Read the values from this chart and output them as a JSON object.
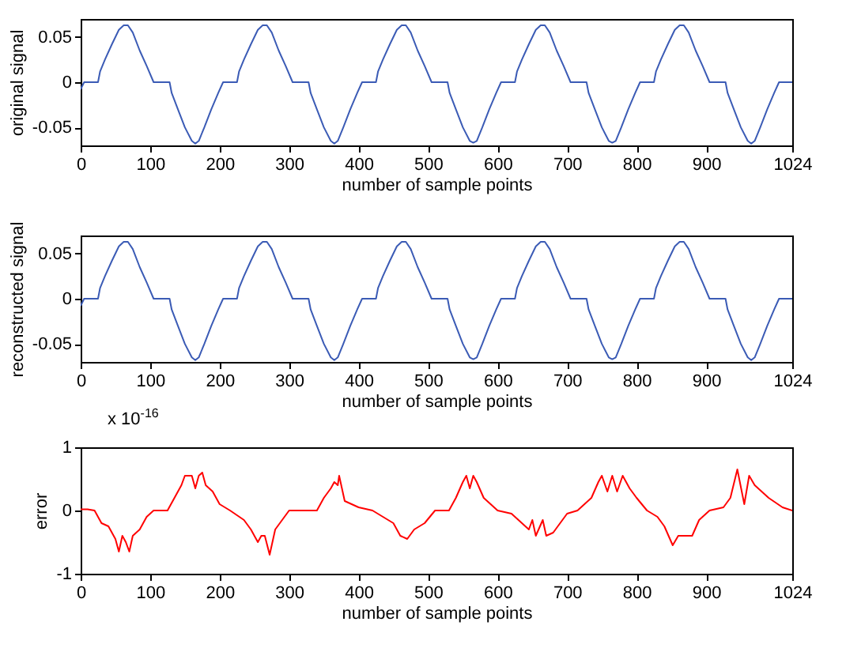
{
  "chart_data": [
    {
      "type": "line",
      "ylabel": "original signal",
      "xlabel": "number of sample points",
      "x": [
        0,
        5,
        25,
        28,
        35,
        45,
        55,
        62,
        68,
        75,
        85,
        95,
        105,
        128,
        131,
        140,
        150,
        160,
        165,
        170,
        178,
        188,
        198,
        205,
        225,
        228,
        235,
        245,
        255,
        262,
        268,
        275,
        285,
        295,
        305,
        328,
        331,
        340,
        350,
        360,
        365,
        370,
        378,
        388,
        398,
        405,
        425,
        428,
        435,
        445,
        455,
        462,
        468,
        475,
        485,
        495,
        505,
        528,
        531,
        540,
        550,
        560,
        565,
        570,
        578,
        588,
        598,
        605,
        625,
        628,
        635,
        645,
        655,
        662,
        668,
        675,
        685,
        695,
        705,
        728,
        731,
        740,
        750,
        760,
        765,
        770,
        778,
        788,
        798,
        805,
        825,
        828,
        835,
        845,
        855,
        862,
        868,
        875,
        885,
        895,
        905,
        928,
        931,
        940,
        950,
        960,
        965,
        970,
        978,
        988,
        998,
        1005,
        1024
      ],
      "series": [
        {
          "color": "#3b5bb5",
          "values": [
            -0.008,
            0,
            0,
            0.012,
            0.025,
            0.042,
            0.058,
            0.063,
            0.063,
            0.055,
            0.035,
            0.018,
            0,
            0,
            -0.012,
            -0.03,
            -0.05,
            -0.065,
            -0.068,
            -0.065,
            -0.05,
            -0.03,
            -0.012,
            0,
            0,
            0.012,
            0.025,
            0.042,
            0.058,
            0.063,
            0.063,
            0.055,
            0.035,
            0.018,
            0,
            0,
            -0.012,
            -0.03,
            -0.05,
            -0.065,
            -0.068,
            -0.065,
            -0.05,
            -0.03,
            -0.012,
            0,
            0,
            0.012,
            0.025,
            0.042,
            0.058,
            0.063,
            0.063,
            0.055,
            0.035,
            0.018,
            0,
            0,
            -0.012,
            -0.03,
            -0.05,
            -0.065,
            -0.067,
            -0.065,
            -0.05,
            -0.03,
            -0.012,
            0,
            0,
            0.012,
            0.025,
            0.042,
            0.058,
            0.063,
            0.063,
            0.055,
            0.035,
            0.018,
            0,
            0,
            -0.012,
            -0.03,
            -0.05,
            -0.065,
            -0.067,
            -0.065,
            -0.05,
            -0.03,
            -0.012,
            0,
            0,
            0.012,
            0.025,
            0.042,
            0.058,
            0.063,
            0.063,
            0.055,
            0.035,
            0.018,
            0,
            0,
            -0.012,
            -0.03,
            -0.05,
            -0.065,
            -0.068,
            -0.065,
            -0.05,
            -0.03,
            -0.012,
            0,
            0
          ]
        }
      ],
      "xlim": [
        0,
        1024
      ],
      "xticks": [
        0,
        100,
        200,
        300,
        400,
        500,
        600,
        700,
        800,
        900,
        1024
      ],
      "ylim": [
        -0.07,
        0.07
      ],
      "yticks": [
        -0.05,
        0,
        0.05
      ]
    },
    {
      "type": "line",
      "ylabel": "reconstructed signal",
      "xlabel": "number of sample points",
      "x": [
        0,
        5,
        25,
        28,
        35,
        45,
        55,
        62,
        68,
        75,
        85,
        95,
        105,
        128,
        131,
        140,
        150,
        160,
        165,
        170,
        178,
        188,
        198,
        205,
        225,
        228,
        235,
        245,
        255,
        262,
        268,
        275,
        285,
        295,
        305,
        328,
        331,
        340,
        350,
        360,
        365,
        370,
        378,
        388,
        398,
        405,
        425,
        428,
        435,
        445,
        455,
        462,
        468,
        475,
        485,
        495,
        505,
        528,
        531,
        540,
        550,
        560,
        565,
        570,
        578,
        588,
        598,
        605,
        625,
        628,
        635,
        645,
        655,
        662,
        668,
        675,
        685,
        695,
        705,
        728,
        731,
        740,
        750,
        760,
        765,
        770,
        778,
        788,
        798,
        805,
        825,
        828,
        835,
        845,
        855,
        862,
        868,
        875,
        885,
        895,
        905,
        928,
        931,
        940,
        950,
        960,
        965,
        970,
        978,
        988,
        998,
        1005,
        1024
      ],
      "series": [
        {
          "color": "#3b5bb5",
          "values": [
            -0.008,
            0,
            0,
            0.012,
            0.025,
            0.042,
            0.058,
            0.063,
            0.063,
            0.055,
            0.035,
            0.018,
            0,
            0,
            -0.012,
            -0.03,
            -0.05,
            -0.065,
            -0.068,
            -0.065,
            -0.05,
            -0.03,
            -0.012,
            0,
            0,
            0.012,
            0.025,
            0.042,
            0.058,
            0.063,
            0.063,
            0.055,
            0.035,
            0.018,
            0,
            0,
            -0.012,
            -0.03,
            -0.05,
            -0.065,
            -0.068,
            -0.065,
            -0.05,
            -0.03,
            -0.012,
            0,
            0,
            0.012,
            0.025,
            0.042,
            0.058,
            0.063,
            0.063,
            0.055,
            0.035,
            0.018,
            0,
            0,
            -0.012,
            -0.03,
            -0.05,
            -0.065,
            -0.067,
            -0.065,
            -0.05,
            -0.03,
            -0.012,
            0,
            0,
            0.012,
            0.025,
            0.042,
            0.058,
            0.063,
            0.063,
            0.055,
            0.035,
            0.018,
            0,
            0,
            -0.012,
            -0.03,
            -0.05,
            -0.065,
            -0.067,
            -0.065,
            -0.05,
            -0.03,
            -0.012,
            0,
            0,
            0.012,
            0.025,
            0.042,
            0.058,
            0.063,
            0.063,
            0.055,
            0.035,
            0.018,
            0,
            0,
            -0.012,
            -0.03,
            -0.05,
            -0.065,
            -0.068,
            -0.065,
            -0.05,
            -0.03,
            -0.012,
            0,
            0
          ]
        }
      ],
      "xlim": [
        0,
        1024
      ],
      "xticks": [
        0,
        100,
        200,
        300,
        400,
        500,
        600,
        700,
        800,
        900,
        1024
      ],
      "ylim": [
        -0.07,
        0.07
      ],
      "yticks": [
        -0.05,
        0,
        0.05
      ]
    },
    {
      "type": "line",
      "ylabel": "error",
      "xlabel": "number of sample points",
      "annotations": [
        "x 10$^{-16}$"
      ],
      "x": [
        0,
        10,
        20,
        30,
        40,
        50,
        55,
        60,
        65,
        70,
        75,
        85,
        95,
        105,
        125,
        135,
        145,
        150,
        160,
        165,
        170,
        175,
        180,
        190,
        200,
        215,
        235,
        245,
        255,
        260,
        265,
        272,
        280,
        290,
        300,
        340,
        350,
        360,
        365,
        370,
        372,
        380,
        390,
        400,
        420,
        435,
        450,
        460,
        470,
        480,
        495,
        510,
        530,
        540,
        550,
        555,
        560,
        565,
        570,
        580,
        590,
        600,
        620,
        630,
        645,
        650,
        655,
        665,
        670,
        680,
        690,
        700,
        715,
        735,
        745,
        750,
        758,
        765,
        772,
        780,
        790,
        800,
        815,
        830,
        840,
        848,
        852,
        860,
        880,
        890,
        905,
        925,
        935,
        945,
        955,
        962,
        970,
        990,
        1010,
        1024
      ],
      "series": [
        {
          "color": "#ff0000",
          "values": [
            0.02,
            0.02,
            0,
            -0.2,
            -0.25,
            -0.45,
            -0.65,
            -0.4,
            -0.5,
            -0.65,
            -0.4,
            -0.3,
            -0.1,
            0,
            0,
            0.2,
            0.4,
            0.55,
            0.55,
            0.35,
            0.55,
            0.6,
            0.4,
            0.3,
            0.1,
            0,
            -0.15,
            -0.3,
            -0.5,
            -0.4,
            -0.4,
            -0.7,
            -0.3,
            -0.15,
            0,
            0,
            0.2,
            0.35,
            0.45,
            0.4,
            0.55,
            0.15,
            0.1,
            0.05,
            0,
            -0.1,
            -0.2,
            -0.4,
            -0.45,
            -0.3,
            -0.2,
            0,
            0,
            0.2,
            0.45,
            0.55,
            0.35,
            0.55,
            0.45,
            0.2,
            0.1,
            0,
            -0.05,
            -0.15,
            -0.3,
            -0.15,
            -0.4,
            -0.15,
            -0.4,
            -0.35,
            -0.2,
            -0.05,
            0,
            0.2,
            0.45,
            0.55,
            0.3,
            0.55,
            0.3,
            0.55,
            0.35,
            0.2,
            0,
            -0.1,
            -0.25,
            -0.45,
            -0.55,
            -0.4,
            -0.4,
            -0.15,
            0,
            0.05,
            0.2,
            0.65,
            0.1,
            0.55,
            0.4,
            0.2,
            0.05,
            0
          ]
        }
      ],
      "xlim": [
        0,
        1024
      ],
      "xticks": [
        0,
        100,
        200,
        300,
        400,
        500,
        600,
        700,
        800,
        900,
        1024
      ],
      "ylim": [
        -1,
        1
      ],
      "yticks": [
        -1,
        0,
        1
      ]
    }
  ]
}
